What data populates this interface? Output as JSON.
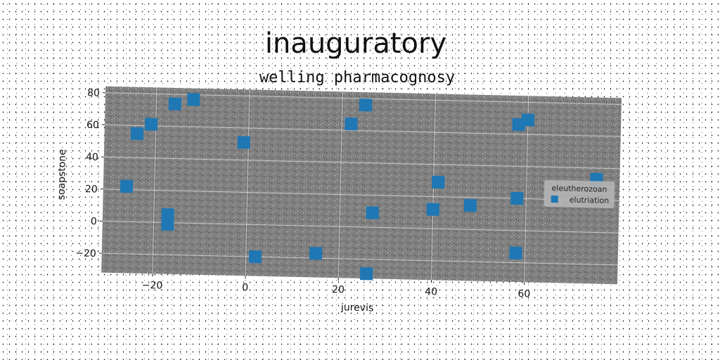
{
  "chart_data": {
    "type": "scatter",
    "title": "inauguratory",
    "subtitle": "welling pharmacognosy",
    "xlabel": "jurevis",
    "ylabel": "soapstone",
    "xlim": [
      -31,
      80
    ],
    "ylim": [
      -32,
      84
    ],
    "xticks": [
      -20,
      0,
      20,
      40,
      60
    ],
    "yticks": [
      -20,
      0,
      20,
      40,
      60,
      80
    ],
    "xtick_labels": [
      "−20",
      "0",
      "20",
      "40",
      "60"
    ],
    "ytick_labels": [
      "−20",
      "0",
      "20",
      "40",
      "60",
      "80"
    ],
    "grid": true,
    "legend": {
      "title": "eleutherozoan",
      "placement": "right"
    },
    "background_color": "#808080",
    "series": [
      {
        "name": "elutriation",
        "color": "#1f77b4",
        "marker": "square",
        "x": [
          -26,
          -24,
          -21,
          -16,
          -12,
          -17,
          -17,
          -1,
          2,
          15,
          22,
          25,
          26,
          27,
          40,
          41,
          48,
          58,
          58,
          58,
          60,
          75
        ],
        "y": [
          22,
          55,
          61,
          74,
          77,
          5,
          -1,
          51,
          -20,
          -17,
          64,
          76,
          -29,
          9,
          12,
          29,
          15,
          66,
          20,
          -14,
          69,
          33
        ]
      }
    ]
  }
}
